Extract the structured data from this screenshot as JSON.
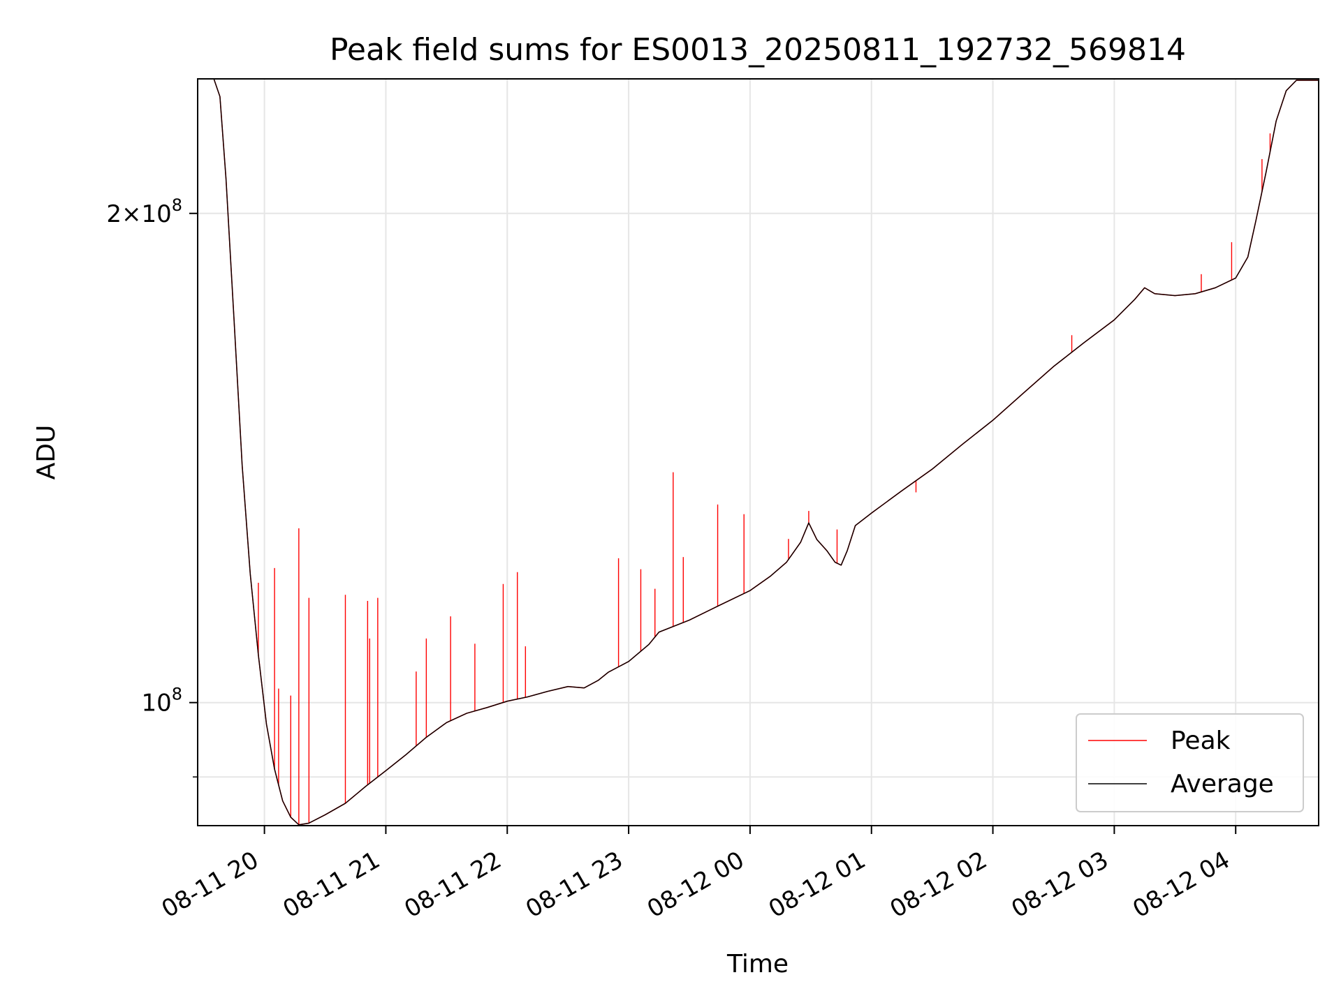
{
  "chart_data": {
    "type": "line",
    "title": "Peak field sums for ES0013_20250811_192732_569814",
    "xlabel": "Time",
    "ylabel": "ADU",
    "y_scale": "log",
    "grid": true,
    "legend_position": "bottom-right",
    "xlim": [
      "2025-08-11 19:27",
      "2025-08-12 04:41"
    ],
    "ylim": [
      84000000,
      242000000
    ],
    "x_ticks": [
      {
        "value": "2025-08-11 20:00",
        "label": "08-11 20"
      },
      {
        "value": "2025-08-11 21:00",
        "label": "08-11 21"
      },
      {
        "value": "2025-08-11 22:00",
        "label": "08-11 22"
      },
      {
        "value": "2025-08-11 23:00",
        "label": "08-11 23"
      },
      {
        "value": "2025-08-12 00:00",
        "label": "08-12 00"
      },
      {
        "value": "2025-08-12 01:00",
        "label": "08-12 01"
      },
      {
        "value": "2025-08-12 02:00",
        "label": "08-12 02"
      },
      {
        "value": "2025-08-12 03:00",
        "label": "08-12 03"
      },
      {
        "value": "2025-08-12 04:00",
        "label": "08-12 04"
      }
    ],
    "y_ticks": [
      {
        "value": 100000000,
        "base": "10",
        "exp": "8",
        "mult": ""
      },
      {
        "value": 200000000,
        "base": "10",
        "exp": "8",
        "mult": "2×"
      }
    ],
    "y_minor_ticks": [
      90000000
    ],
    "series": [
      {
        "name": "Average",
        "color": "#000000",
        "x": [
          "2025-08-11 19:35",
          "2025-08-11 19:38",
          "2025-08-11 19:41",
          "2025-08-11 19:45",
          "2025-08-11 19:49",
          "2025-08-11 19:53",
          "2025-08-11 19:57",
          "2025-08-11 20:01",
          "2025-08-11 20:05",
          "2025-08-11 20:09",
          "2025-08-11 20:13",
          "2025-08-11 20:17",
          "2025-08-11 20:22",
          "2025-08-11 20:30",
          "2025-08-11 20:40",
          "2025-08-11 20:50",
          "2025-08-11 21:00",
          "2025-08-11 21:10",
          "2025-08-11 21:20",
          "2025-08-11 21:30",
          "2025-08-11 21:40",
          "2025-08-11 21:50",
          "2025-08-11 22:00",
          "2025-08-11 22:10",
          "2025-08-11 22:20",
          "2025-08-11 22:30",
          "2025-08-11 22:38",
          "2025-08-11 22:45",
          "2025-08-11 22:50",
          "2025-08-11 23:00",
          "2025-08-11 23:10",
          "2025-08-11 23:15",
          "2025-08-11 23:30",
          "2025-08-11 23:45",
          "2025-08-12 00:00",
          "2025-08-12 00:10",
          "2025-08-12 00:18",
          "2025-08-12 00:25",
          "2025-08-12 00:29",
          "2025-08-12 00:33",
          "2025-08-12 00:38",
          "2025-08-12 00:42",
          "2025-08-12 00:45",
          "2025-08-12 00:48",
          "2025-08-12 00:52",
          "2025-08-12 01:00",
          "2025-08-12 01:15",
          "2025-08-12 01:30",
          "2025-08-12 01:45",
          "2025-08-12 02:00",
          "2025-08-12 02:15",
          "2025-08-12 02:30",
          "2025-08-12 02:45",
          "2025-08-12 03:00",
          "2025-08-12 03:10",
          "2025-08-12 03:15",
          "2025-08-12 03:20",
          "2025-08-12 03:30",
          "2025-08-12 03:40",
          "2025-08-12 03:50",
          "2025-08-12 04:00",
          "2025-08-12 04:06",
          "2025-08-12 04:10",
          "2025-08-12 04:15",
          "2025-08-12 04:20",
          "2025-08-12 04:25",
          "2025-08-12 04:30",
          "2025-08-12 04:41"
        ],
        "y": [
          242000000,
          236000000,
          210000000,
          172000000,
          140000000,
          120000000,
          107000000,
          97000000,
          91000000,
          87000000,
          85000000,
          84100000,
          84300000,
          85300000,
          86700000,
          88800000,
          90800000,
          92900000,
          95200000,
          97200000,
          98500000,
          99300000,
          100200000,
          100800000,
          101600000,
          102300000,
          102100000,
          103200000,
          104400000,
          106000000,
          108600000,
          110500000,
          112400000,
          114800000,
          117200000,
          119600000,
          122000000,
          125500000,
          129000000,
          126000000,
          124000000,
          122000000,
          121500000,
          124000000,
          128500000,
          130800000,
          135000000,
          139200000,
          144200000,
          149200000,
          155000000,
          161000000,
          166500000,
          172000000,
          177000000,
          180000000,
          178500000,
          178000000,
          178500000,
          180000000,
          182500000,
          188000000,
          198000000,
          212000000,
          228000000,
          238000000,
          241500000,
          241500000
        ]
      },
      {
        "name": "Peak",
        "color": "#ff0000",
        "spikes": [
          {
            "x": "2025-08-11 19:57",
            "y": 118500000
          },
          {
            "x": "2025-08-11 20:05",
            "y": 121000000
          },
          {
            "x": "2025-08-11 20:07",
            "y": 102000000
          },
          {
            "x": "2025-08-11 20:13",
            "y": 101000000
          },
          {
            "x": "2025-08-11 20:17",
            "y": 128000000
          },
          {
            "x": "2025-08-11 20:22",
            "y": 116000000
          },
          {
            "x": "2025-08-11 20:40",
            "y": 116500000
          },
          {
            "x": "2025-08-11 20:51",
            "y": 115500000
          },
          {
            "x": "2025-08-11 20:52",
            "y": 109500000
          },
          {
            "x": "2025-08-11 20:56",
            "y": 116000000
          },
          {
            "x": "2025-08-11 21:15",
            "y": 104500000
          },
          {
            "x": "2025-08-11 21:20",
            "y": 109500000
          },
          {
            "x": "2025-08-11 21:32",
            "y": 113000000
          },
          {
            "x": "2025-08-11 21:44",
            "y": 108700000
          },
          {
            "x": "2025-08-11 21:58",
            "y": 118300000
          },
          {
            "x": "2025-08-11 22:05",
            "y": 120300000
          },
          {
            "x": "2025-08-11 22:09",
            "y": 108300000
          },
          {
            "x": "2025-08-11 22:55",
            "y": 122700000
          },
          {
            "x": "2025-08-11 23:06",
            "y": 120800000
          },
          {
            "x": "2025-08-11 23:13",
            "y": 117500000
          },
          {
            "x": "2025-08-11 23:22",
            "y": 138600000
          },
          {
            "x": "2025-08-11 23:27",
            "y": 122900000
          },
          {
            "x": "2025-08-11 23:44",
            "y": 132400000
          },
          {
            "x": "2025-08-11 23:57",
            "y": 130600000
          },
          {
            "x": "2025-08-12 00:19",
            "y": 126100000
          },
          {
            "x": "2025-08-12 00:29",
            "y": 131200000
          },
          {
            "x": "2025-08-12 00:43",
            "y": 127800000
          },
          {
            "x": "2025-08-12 01:22",
            "y": 134700000
          },
          {
            "x": "2025-08-12 02:39",
            "y": 168300000
          },
          {
            "x": "2025-08-12 03:43",
            "y": 183500000
          },
          {
            "x": "2025-08-12 03:58",
            "y": 192000000
          },
          {
            "x": "2025-08-12 04:13",
            "y": 216000000
          },
          {
            "x": "2025-08-12 04:17",
            "y": 224000000
          }
        ]
      }
    ]
  }
}
